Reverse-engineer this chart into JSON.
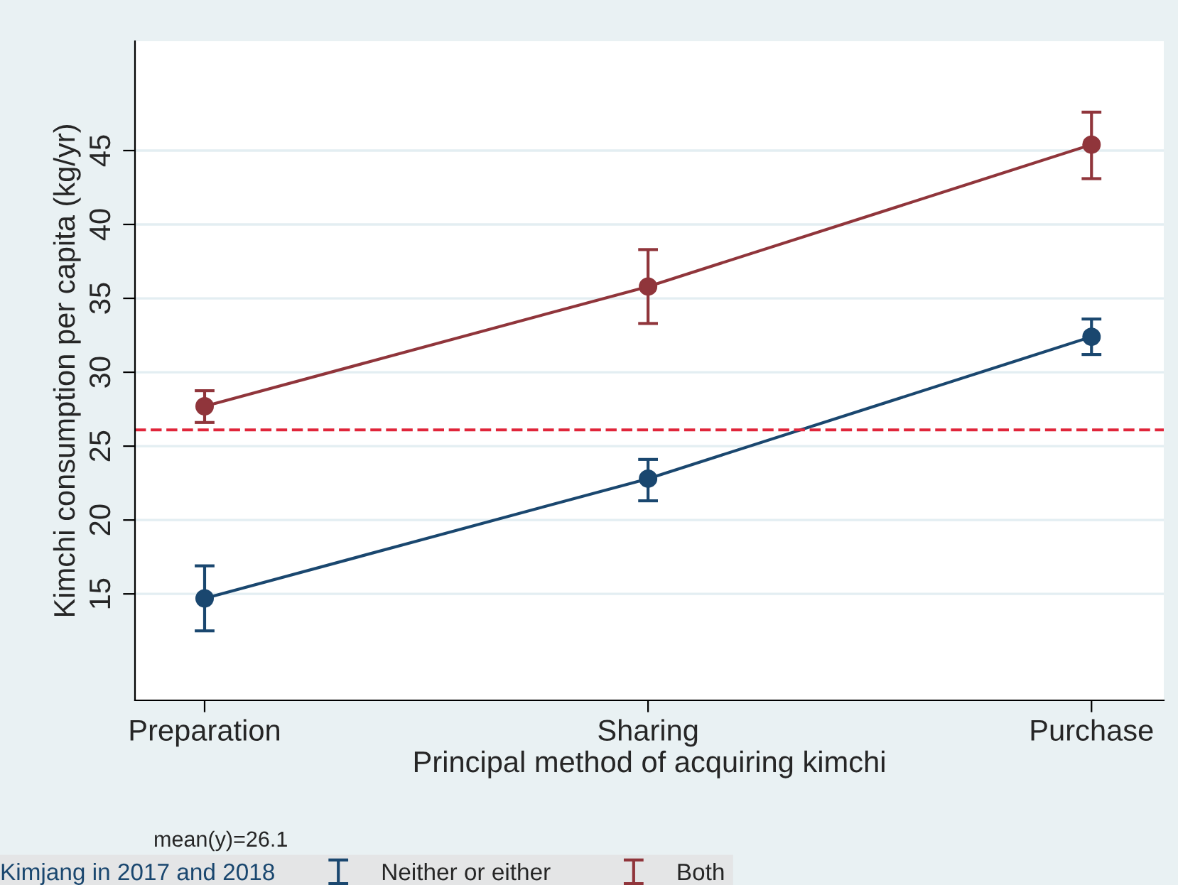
{
  "chart_data": {
    "type": "line",
    "xlabel": "Principal method of acquiring kimchi",
    "ylabel": "Kimchi consumption per capita (kg/yr)",
    "legend_title": "Kimjang in 2017 and 2018",
    "categories": [
      "Preparation",
      "Sharing",
      "Purchase"
    ],
    "series": [
      {
        "name": "Neither or either",
        "color": "#1a476f",
        "values": [
          14.7,
          22.8,
          32.4
        ],
        "errors": [
          [
            12.5,
            16.9
          ],
          [
            21.3,
            24.1
          ],
          [
            31.2,
            33.6
          ]
        ]
      },
      {
        "name": "Both",
        "color": "#90353b",
        "values": [
          27.7,
          35.8,
          45.4
        ],
        "errors": [
          [
            26.6,
            28.75
          ],
          [
            33.3,
            38.3
          ],
          [
            43.1,
            47.6
          ]
        ]
      }
    ],
    "ylim": [
      7.8,
      52.4
    ],
    "yticks": [
      15,
      20,
      25,
      30,
      35,
      40,
      45
    ],
    "ref_lines": [
      {
        "axis": "y",
        "value": 26.1,
        "color": "#e0253a",
        "line_style": "dashed"
      }
    ],
    "annotations": [
      "mean(y)=26.1"
    ],
    "grid": "y",
    "legend": "bottom",
    "marker": "circle",
    "line_style": "solid"
  }
}
